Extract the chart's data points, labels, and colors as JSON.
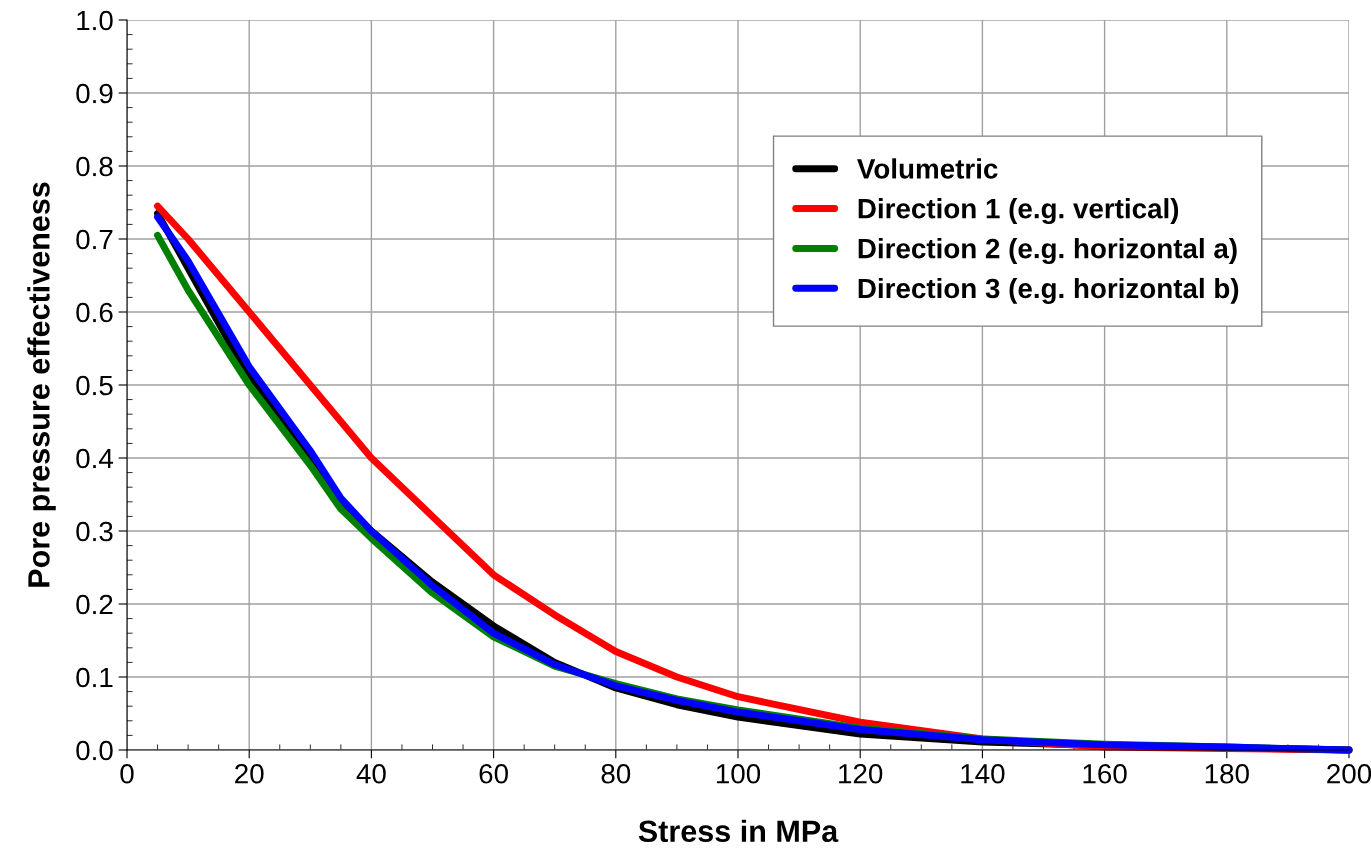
{
  "chart_data": {
    "type": "line",
    "xlabel": "Stress in MPa",
    "ylabel": "Pore pressure effectiveness",
    "x": [
      5,
      10,
      20,
      30,
      35,
      40,
      50,
      60,
      70,
      80,
      90,
      100,
      120,
      140,
      160,
      180,
      200
    ],
    "series": [
      {
        "name": "Volumetric",
        "color": "#000000",
        "values": [
          0.735,
          0.66,
          0.51,
          0.4,
          0.34,
          0.3,
          0.23,
          0.17,
          0.12,
          0.085,
          0.062,
          0.045,
          0.022,
          0.011,
          0.006,
          0.003,
          0.0
        ]
      },
      {
        "name": "Direction 1 (e.g. vertical)",
        "color": "#ff0000",
        "values": [
          0.745,
          0.7,
          0.6,
          0.5,
          0.45,
          0.4,
          0.32,
          0.24,
          0.185,
          0.135,
          0.1,
          0.073,
          0.038,
          0.015,
          0.004,
          0.002,
          0.0
        ]
      },
      {
        "name": "Direction 2 (e.g. horizontal a)",
        "color": "#008000",
        "values": [
          0.705,
          0.63,
          0.5,
          0.39,
          0.33,
          0.29,
          0.215,
          0.155,
          0.115,
          0.091,
          0.07,
          0.055,
          0.03,
          0.015,
          0.008,
          0.004,
          0.0
        ]
      },
      {
        "name": "Direction 3 (e.g. horizontal b)",
        "color": "#0000ff",
        "values": [
          0.73,
          0.67,
          0.525,
          0.41,
          0.345,
          0.3,
          0.225,
          0.16,
          0.117,
          0.088,
          0.068,
          0.052,
          0.028,
          0.014,
          0.007,
          0.004,
          0.0
        ]
      }
    ],
    "xlim": [
      0,
      200
    ],
    "ylim": [
      0,
      1.0
    ],
    "xticks": [
      0,
      20,
      40,
      60,
      80,
      100,
      120,
      140,
      160,
      180,
      200
    ],
    "yticks": [
      {
        "value": 0,
        "label": "0.0"
      },
      {
        "value": 0.1,
        "label": "0.1"
      },
      {
        "value": 0.2,
        "label": "0.2"
      },
      {
        "value": 0.3,
        "label": "0.3"
      },
      {
        "value": 0.4,
        "label": "0.4"
      },
      {
        "value": 0.5,
        "label": "0.5"
      },
      {
        "value": 0.6,
        "label": "0.6"
      },
      {
        "value": 0.7,
        "label": "0.7"
      },
      {
        "value": 0.8,
        "label": "0.8"
      },
      {
        "value": 0.9,
        "label": "0.9"
      },
      {
        "value": 1.0,
        "label": "1.0"
      }
    ],
    "grid": true,
    "legend": "top right",
    "marker": "none",
    "line_style": "solid"
  }
}
